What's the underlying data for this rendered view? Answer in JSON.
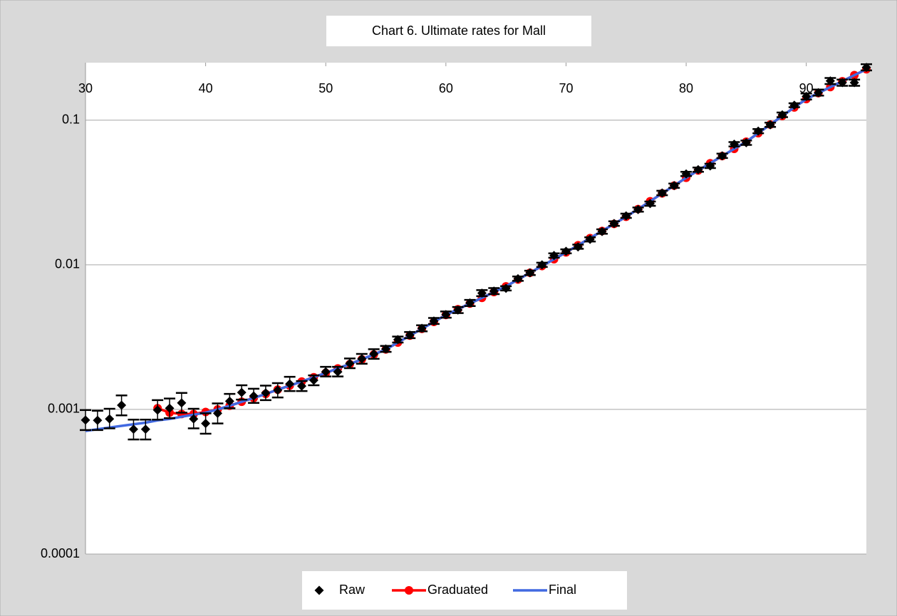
{
  "chart_data": {
    "type": "scatter-line",
    "title": "Chart 6. Ultimate rates for Mall",
    "x": [
      30,
      31,
      32,
      33,
      34,
      35,
      36,
      37,
      38,
      39,
      40,
      41,
      42,
      43,
      44,
      45,
      46,
      47,
      48,
      49,
      50,
      51,
      52,
      53,
      54,
      55,
      56,
      57,
      58,
      59,
      60,
      61,
      62,
      63,
      64,
      65,
      66,
      67,
      68,
      69,
      70,
      71,
      72,
      73,
      74,
      75,
      76,
      77,
      78,
      79,
      80,
      81,
      82,
      83,
      84,
      85,
      86,
      87,
      88,
      89,
      90,
      91,
      92,
      93,
      94,
      95
    ],
    "xlim": [
      30,
      95
    ],
    "xticks": [
      30,
      40,
      50,
      60,
      70,
      80,
      90
    ],
    "ylim": [
      0.0001,
      0.25
    ],
    "yticks": [
      0.0001,
      0.001,
      0.01,
      0.1
    ],
    "log_y": true,
    "grid": true,
    "legend": "bottom",
    "series": [
      {
        "name": "Raw",
        "color": "#000000",
        "style": "marker",
        "values": [
          0.000844,
          0.00084,
          0.00086,
          0.00107,
          0.00073,
          0.00073,
          0.00099,
          0.00102,
          0.00111,
          0.00086,
          0.0008,
          0.00094,
          0.00114,
          0.00131,
          0.00124,
          0.0013,
          0.00136,
          0.0015,
          0.00145,
          0.00159,
          0.00182,
          0.00182,
          0.00208,
          0.00224,
          0.00242,
          0.00262,
          0.00304,
          0.00327,
          0.00364,
          0.00409,
          0.00453,
          0.00487,
          0.00545,
          0.00637,
          0.00658,
          0.00688,
          0.00802,
          0.0088,
          0.01,
          0.0116,
          0.0124,
          0.0133,
          0.015,
          0.017,
          0.0193,
          0.0218,
          0.0241,
          0.0265,
          0.0314,
          0.0353,
          0.0425,
          0.0455,
          0.0483,
          0.0567,
          0.0682,
          0.0699,
          0.084,
          0.0929,
          0.109,
          0.127,
          0.146,
          0.155,
          0.187,
          0.182,
          0.182,
          0.232
        ],
        "lower": [
          0.00072,
          0.00072,
          0.00074,
          0.00091,
          0.00062,
          0.00062,
          0.00085,
          0.00087,
          0.00095,
          0.00074,
          0.00068,
          0.0008,
          0.00102,
          0.00117,
          0.00111,
          0.00116,
          0.00121,
          0.00134,
          0.00134,
          0.00147,
          0.00169,
          0.00169,
          0.00193,
          0.00207,
          0.00224,
          0.0025,
          0.0029,
          0.00311,
          0.00347,
          0.0039,
          0.00431,
          0.00464,
          0.00519,
          0.00607,
          0.00627,
          0.00665,
          0.00775,
          0.0085,
          0.00966,
          0.0112,
          0.012,
          0.0129,
          0.0145,
          0.0164,
          0.0186,
          0.0211,
          0.0233,
          0.0256,
          0.0303,
          0.0341,
          0.0411,
          0.044,
          0.0467,
          0.0548,
          0.0659,
          0.0675,
          0.0812,
          0.0898,
          0.105,
          0.123,
          0.139,
          0.148,
          0.178,
          0.173,
          0.173,
          0.221
        ],
        "upper": [
          0.00099,
          0.00098,
          0.00101,
          0.00125,
          0.00085,
          0.00085,
          0.00116,
          0.00119,
          0.0013,
          0.00101,
          0.00094,
          0.0011,
          0.00128,
          0.00147,
          0.00139,
          0.00146,
          0.00152,
          0.00168,
          0.00157,
          0.00172,
          0.00197,
          0.00197,
          0.00225,
          0.00242,
          0.00261,
          0.00275,
          0.00319,
          0.00343,
          0.00382,
          0.00429,
          0.00476,
          0.00511,
          0.00572,
          0.00669,
          0.00691,
          0.00712,
          0.0083,
          0.00911,
          0.01035,
          0.012,
          0.0128,
          0.0138,
          0.0155,
          0.0176,
          0.02,
          0.0226,
          0.0249,
          0.0274,
          0.0325,
          0.0365,
          0.044,
          0.0471,
          0.05,
          0.0587,
          0.0706,
          0.0723,
          0.0869,
          0.0962,
          0.113,
          0.131,
          0.153,
          0.163,
          0.196,
          0.191,
          0.191,
          0.244
        ]
      },
      {
        "name": "Graduated",
        "color": "#ff0000",
        "style": "line-marker",
        "values": [
          null,
          null,
          null,
          null,
          null,
          null,
          0.00102,
          0.00095,
          0.00093,
          0.00093,
          0.00096,
          0.001,
          0.00106,
          0.00113,
          0.0012,
          0.00128,
          0.00137,
          0.00146,
          0.00156,
          0.00167,
          0.00179,
          0.00192,
          0.00206,
          0.00222,
          0.0024,
          0.0026,
          0.0029,
          0.00324,
          0.00361,
          0.00403,
          0.0045,
          0.00493,
          0.0054,
          0.00591,
          0.00648,
          0.0071,
          0.00791,
          0.00881,
          0.00981,
          0.01093,
          0.0122,
          0.01366,
          0.0153,
          0.01714,
          0.0192,
          0.0215,
          0.0243,
          0.0275,
          0.0312,
          0.0353,
          0.04,
          0.0449,
          0.0504,
          0.0565,
          0.0634,
          0.071,
          0.0814,
          0.0933,
          0.107,
          0.1226,
          0.14,
          0.154,
          0.1695,
          0.186,
          0.205,
          0.225
        ]
      },
      {
        "name": "Final",
        "color": "#4169e1",
        "style": "line",
        "values": [
          0.00071,
          0.00073,
          0.00075,
          0.00077,
          0.00079,
          0.00081,
          0.00084,
          0.00086,
          0.00089,
          0.00092,
          0.00095,
          0.001,
          0.00106,
          0.00113,
          0.0012,
          0.00128,
          0.00137,
          0.00146,
          0.00156,
          0.00167,
          0.00179,
          0.00192,
          0.00206,
          0.00222,
          0.0024,
          0.0026,
          0.0029,
          0.00324,
          0.00361,
          0.00403,
          0.0045,
          0.00493,
          0.0054,
          0.00591,
          0.00648,
          0.0071,
          0.00791,
          0.00881,
          0.00981,
          0.01093,
          0.0122,
          0.01366,
          0.0153,
          0.01714,
          0.0192,
          0.0215,
          0.0243,
          0.0275,
          0.0312,
          0.0353,
          0.04,
          0.0449,
          0.0504,
          0.0565,
          0.0634,
          0.071,
          0.0814,
          0.0933,
          0.107,
          0.1226,
          0.14,
          0.154,
          0.1695,
          0.186,
          0.205,
          0.225
        ]
      }
    ]
  }
}
